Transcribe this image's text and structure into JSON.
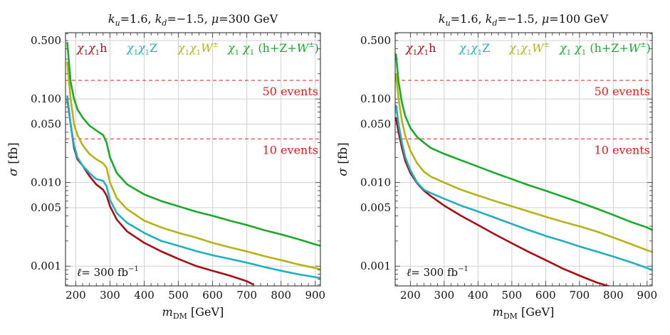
{
  "chart_data": [
    {
      "type": "line",
      "title": "k_u=1.6, k_d=−1.5, μ=300 GeV",
      "title_parts": {
        "ku": "1.6",
        "kd": "−1.5",
        "mu": "300 GeV"
      },
      "xlabel": "m_DM [GeV]",
      "ylabel": "σ [fb]",
      "xscale": "linear",
      "yscale": "log",
      "xlim": [
        170,
        915
      ],
      "ylim": [
        0.00058,
        0.62
      ],
      "xticks": [
        200,
        300,
        400,
        500,
        600,
        700,
        800,
        900
      ],
      "yticks": [
        0.001,
        0.005,
        0.01,
        0.05,
        0.1,
        0.5
      ],
      "ytick_labels": [
        "0.001",
        "0.005",
        "0.010",
        "0.050",
        "0.100",
        "0.500"
      ],
      "luminosity_label": "ℓ= 300 fb⁻¹",
      "hlines": [
        {
          "label": "50 events",
          "y": 0.1667,
          "color": "#e31a1c"
        },
        {
          "label": "10 events",
          "y": 0.0333,
          "color": "#e31a1c"
        }
      ],
      "legend": [
        "χ₁χ₁h",
        "χ₁χ₁Z",
        "χ₁χ₁W±",
        "χ₁ χ₁ (h+Z+W±)"
      ],
      "series": [
        {
          "name": "χ₁χ₁h",
          "color": "#a50f15",
          "x": [
            175,
            185,
            195,
            205,
            220,
            240,
            260,
            280,
            290,
            300,
            320,
            350,
            400,
            450,
            500,
            550,
            600,
            650,
            700,
            720
          ],
          "y": [
            0.1,
            0.05,
            0.026,
            0.019,
            0.016,
            0.012,
            0.0095,
            0.0082,
            0.007,
            0.0052,
            0.0036,
            0.0026,
            0.0019,
            0.0015,
            0.00122,
            0.00101,
            0.00088,
            0.00077,
            0.00066,
            0.0006
          ]
        },
        {
          "name": "χ₁χ₁Z",
          "color": "#1fb0c0",
          "x": [
            175,
            185,
            195,
            205,
            220,
            240,
            260,
            280,
            290,
            300,
            320,
            350,
            400,
            450,
            500,
            550,
            600,
            650,
            700,
            750,
            800,
            850,
            900,
            915
          ],
          "y": [
            0.11,
            0.05,
            0.028,
            0.02,
            0.016,
            0.013,
            0.011,
            0.0105,
            0.009,
            0.0062,
            0.0043,
            0.0033,
            0.0025,
            0.002,
            0.00175,
            0.00152,
            0.00135,
            0.00122,
            0.0011,
            0.00098,
            0.00088,
            0.0008,
            0.00074,
            0.00072
          ]
        },
        {
          "name": "χ₁χ₁W±",
          "color": "#b5b315",
          "x": [
            175,
            185,
            195,
            205,
            220,
            240,
            260,
            280,
            290,
            300,
            320,
            350,
            400,
            450,
            500,
            550,
            600,
            650,
            700,
            750,
            800,
            850,
            900,
            915
          ],
          "y": [
            0.28,
            0.1,
            0.05,
            0.037,
            0.028,
            0.022,
            0.019,
            0.017,
            0.015,
            0.01,
            0.0065,
            0.0048,
            0.0035,
            0.0029,
            0.0025,
            0.0022,
            0.0019,
            0.00168,
            0.0015,
            0.00132,
            0.00118,
            0.00105,
            0.00095,
            0.00092
          ]
        },
        {
          "name": "χ₁ χ₁ (h+Z+W±)",
          "color": "#1aaa2a",
          "x": [
            175,
            185,
            195,
            205,
            220,
            240,
            260,
            280,
            290,
            300,
            320,
            350,
            400,
            450,
            500,
            550,
            600,
            650,
            700,
            750,
            800,
            850,
            900,
            915
          ],
          "y": [
            0.48,
            0.16,
            0.1,
            0.075,
            0.06,
            0.048,
            0.042,
            0.037,
            0.03,
            0.02,
            0.013,
            0.0095,
            0.0072,
            0.006,
            0.0052,
            0.0045,
            0.004,
            0.0035,
            0.0031,
            0.0027,
            0.0024,
            0.0021,
            0.00182,
            0.00175
          ]
        }
      ]
    },
    {
      "type": "line",
      "title": "k_u=1.6, k_d=−1.5, μ=100 GeV",
      "title_parts": {
        "ku": "1.6",
        "kd": "−1.5",
        "mu": "100 GeV"
      },
      "xlabel": "m_DM [GeV]",
      "ylabel": "σ [fb]",
      "xscale": "linear",
      "yscale": "log",
      "xlim": [
        155,
        915
      ],
      "ylim": [
        0.00058,
        0.62
      ],
      "xticks": [
        200,
        300,
        400,
        500,
        600,
        700,
        800,
        900
      ],
      "yticks": [
        0.001,
        0.005,
        0.01,
        0.05,
        0.1,
        0.5
      ],
      "ytick_labels": [
        "0.001",
        "0.005",
        "0.010",
        "0.050",
        "0.100",
        "0.500"
      ],
      "luminosity_label": "ℓ= 300 fb⁻¹",
      "hlines": [
        {
          "label": "50 events",
          "y": 0.1667,
          "color": "#e31a1c"
        },
        {
          "label": "10 events",
          "y": 0.0333,
          "color": "#e31a1c"
        }
      ],
      "legend": [
        "χ₁χ₁h",
        "χ₁χ₁Z",
        "χ₁χ₁W±",
        "χ₁ χ₁ (h+Z+W±)"
      ],
      "series": [
        {
          "name": "χ₁χ₁h",
          "color": "#a50f15",
          "x": [
            157,
            165,
            175,
            185,
            200,
            220,
            240,
            260,
            300,
            350,
            400,
            450,
            500,
            550,
            600,
            650,
            700,
            750,
            790
          ],
          "y": [
            0.06,
            0.04,
            0.026,
            0.018,
            0.013,
            0.0098,
            0.008,
            0.0069,
            0.0053,
            0.004,
            0.0031,
            0.0024,
            0.00188,
            0.00148,
            0.00118,
            0.00094,
            0.00077,
            0.00064,
            0.00057
          ]
        },
        {
          "name": "χ₁χ₁Z",
          "color": "#1fb0c0",
          "x": [
            157,
            165,
            175,
            185,
            200,
            220,
            240,
            260,
            300,
            350,
            400,
            450,
            500,
            550,
            600,
            650,
            700,
            750,
            800,
            850,
            900,
            915
          ],
          "y": [
            0.085,
            0.05,
            0.03,
            0.02,
            0.014,
            0.01,
            0.0082,
            0.0075,
            0.0064,
            0.0053,
            0.0045,
            0.0038,
            0.0032,
            0.0027,
            0.0023,
            0.002,
            0.00172,
            0.0015,
            0.0013,
            0.00112,
            0.00095,
            0.0009
          ]
        },
        {
          "name": "χ₁χ₁W±",
          "color": "#b5b315",
          "x": [
            157,
            165,
            175,
            185,
            200,
            220,
            240,
            260,
            300,
            350,
            400,
            450,
            500,
            550,
            600,
            650,
            700,
            750,
            800,
            850,
            900,
            915
          ],
          "y": [
            0.2,
            0.1,
            0.055,
            0.036,
            0.024,
            0.017,
            0.0135,
            0.0118,
            0.01,
            0.0082,
            0.007,
            0.006,
            0.0052,
            0.0045,
            0.0039,
            0.0034,
            0.003,
            0.0026,
            0.0022,
            0.00185,
            0.00155,
            0.00148
          ]
        },
        {
          "name": "χ₁ χ₁ (h+Z+W±)",
          "color": "#1aaa2a",
          "x": [
            157,
            165,
            175,
            185,
            200,
            220,
            240,
            260,
            300,
            350,
            400,
            450,
            500,
            550,
            600,
            650,
            700,
            750,
            800,
            850,
            900,
            915
          ],
          "y": [
            0.35,
            0.16,
            0.09,
            0.062,
            0.045,
            0.035,
            0.03,
            0.026,
            0.022,
            0.0185,
            0.0155,
            0.013,
            0.011,
            0.0093,
            0.008,
            0.0068,
            0.0058,
            0.0049,
            0.0041,
            0.0034,
            0.0029,
            0.0027
          ]
        }
      ]
    }
  ]
}
